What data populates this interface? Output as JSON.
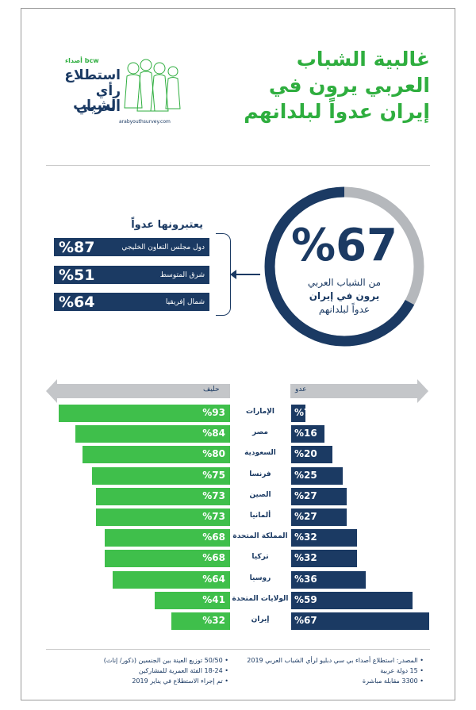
{
  "title_lines": [
    "غالبية الشباب",
    "العربي يرون في",
    "إيران عدواً لبلدانهم"
  ],
  "logo": {
    "brand": "bcw أصداء",
    "words": [
      "استطلاع",
      "رأي الشباب",
      "العربي"
    ],
    "site": "arabyouthsurvey.com"
  },
  "headline": {
    "percent": "%67",
    "text_lines": [
      "من الشباب العربي",
      "يرون في إيران",
      "عدواً لبلدانهم"
    ],
    "value": 67
  },
  "consider": {
    "heading": "يعتبرونها عدواً",
    "regions": [
      {
        "label": "دول مجلس التعاون الخليجي",
        "pct": "%87"
      },
      {
        "label": "شرق المتوسط",
        "pct": "%51"
      },
      {
        "label": "شمال إفريقيا",
        "pct": "%64"
      }
    ]
  },
  "axis_labels": {
    "ally": "حليف",
    "enemy": "عدو"
  },
  "colors": {
    "ally": "#3fbf4b",
    "enemy": "#1b3a63",
    "accent_green": "#2fae3f",
    "ring_gray": "#b5b8bc"
  },
  "chart_data": [
    {
      "type": "bar",
      "categories": [
        "الإمارات",
        "مصر",
        "السعودية",
        "فرنسا",
        "الصين",
        "ألمانيا",
        "المملكة المتحدة",
        "تركيا",
        "روسيا",
        "الولايات المتحدة",
        "إيران"
      ],
      "series": [
        {
          "name": "حليف",
          "values": [
            93,
            84,
            80,
            75,
            73,
            73,
            68,
            68,
            64,
            41,
            32
          ],
          "labels": [
            "%93",
            "%84",
            "%80",
            "%75",
            "%73",
            "%73",
            "%68",
            "%68",
            "%64",
            "%41",
            "%32"
          ]
        },
        {
          "name": "عدو",
          "values": [
            7,
            16,
            20,
            25,
            27,
            27,
            32,
            32,
            36,
            59,
            67
          ],
          "labels": [
            "%7",
            "%16",
            "%20",
            "%25",
            "%27",
            "%27",
            "%32",
            "%32",
            "%36",
            "%59",
            "%67"
          ]
        }
      ]
    }
  ],
  "footer": {
    "right": [
      "المصدر: استطلاع أصداء بي سي دبليو لرأي الشباب العربي 2019",
      "15 دولة عربية",
      "3300 مقابلة مباشرة"
    ],
    "left": [
      "50/50 توزيع العينة بين الجنسين (ذكور/ إناث)",
      "18-24 الفئة العمرية للمشاركين",
      "تم إجراء الاستطلاع في يناير 2019"
    ]
  }
}
